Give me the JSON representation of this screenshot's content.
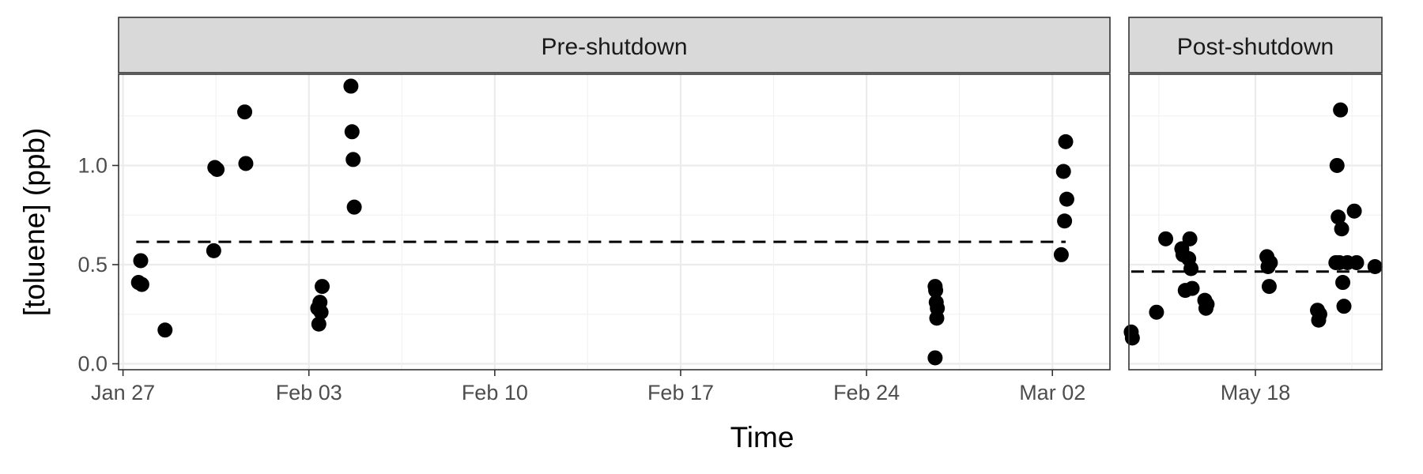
{
  "chart_data": {
    "type": "scatter",
    "xlabel": "Time",
    "ylabel": "[toluene] (ppb)",
    "y_ticks": [
      0.0,
      0.5,
      1.0
    ],
    "y_tick_labels": [
      "0.0",
      "0.5",
      "1.0"
    ],
    "ylim": [
      -0.03,
      1.46
    ],
    "grid": true,
    "facets": [
      {
        "label": "Pre-shutdown",
        "xlim": [
          "2020-01-26T20:00",
          "2020-03-04T04:00"
        ],
        "x_ticks": [
          "2020-01-27",
          "2020-02-03",
          "2020-02-10",
          "2020-02-17",
          "2020-02-24",
          "2020-03-02"
        ],
        "x_tick_labels": [
          "Jan 27",
          "Feb 03",
          "Feb 10",
          "Feb 17",
          "Feb 24",
          "Mar 02"
        ],
        "mean_line": {
          "y": 0.615,
          "x_start": "2020-01-27T12:00",
          "x_end": "2020-03-02T12:00"
        },
        "points": [
          {
            "x": "2020-01-27T14:00",
            "y": 0.41
          },
          {
            "x": "2020-01-27T16:00",
            "y": 0.52
          },
          {
            "x": "2020-01-27T17:00",
            "y": 0.4
          },
          {
            "x": "2020-01-28T14:00",
            "y": 0.17
          },
          {
            "x": "2020-01-30T10:00",
            "y": 0.57
          },
          {
            "x": "2020-01-30T11:00",
            "y": 0.99
          },
          {
            "x": "2020-01-30T13:00",
            "y": 0.98
          },
          {
            "x": "2020-01-31T14:00",
            "y": 1.27
          },
          {
            "x": "2020-01-31T15:00",
            "y": 1.01
          },
          {
            "x": "2020-02-03T08:00",
            "y": 0.28
          },
          {
            "x": "2020-02-03T09:00",
            "y": 0.2
          },
          {
            "x": "2020-02-03T10:00",
            "y": 0.31
          },
          {
            "x": "2020-02-03T11:00",
            "y": 0.26
          },
          {
            "x": "2020-02-03T12:00",
            "y": 0.39
          },
          {
            "x": "2020-02-04T14:00",
            "y": 1.4
          },
          {
            "x": "2020-02-04T15:00",
            "y": 1.17
          },
          {
            "x": "2020-02-04T16:00",
            "y": 1.03
          },
          {
            "x": "2020-02-04T17:00",
            "y": 0.79
          },
          {
            "x": "2020-02-26T14:00",
            "y": 0.39
          },
          {
            "x": "2020-02-26T14:30",
            "y": 0.37
          },
          {
            "x": "2020-02-26T15:00",
            "y": 0.31
          },
          {
            "x": "2020-02-26T16:00",
            "y": 0.28
          },
          {
            "x": "2020-02-26T15:30",
            "y": 0.23
          },
          {
            "x": "2020-02-26T14:00",
            "y": 0.03
          },
          {
            "x": "2020-03-02T08:00",
            "y": 0.55
          },
          {
            "x": "2020-03-02T10:00",
            "y": 0.97
          },
          {
            "x": "2020-03-02T12:00",
            "y": 1.12
          },
          {
            "x": "2020-03-02T13:00",
            "y": 0.83
          },
          {
            "x": "2020-03-02T11:00",
            "y": 0.72
          }
        ]
      },
      {
        "label": "Post-shutdown",
        "xlim": [
          "2020-05-13T10:00",
          "2020-05-22T14:00"
        ],
        "x_ticks": [
          "2020-05-18"
        ],
        "x_tick_labels": [
          "May 18"
        ],
        "mean_line": {
          "y": 0.465,
          "x_start": "2020-05-13T12:00",
          "x_end": "2020-05-22T12:00"
        },
        "points": [
          {
            "x": "2020-05-13T12:00",
            "y": 0.16
          },
          {
            "x": "2020-05-13T13:00",
            "y": 0.13
          },
          {
            "x": "2020-05-14T10:00",
            "y": 0.26
          },
          {
            "x": "2020-05-14T18:00",
            "y": 0.63
          },
          {
            "x": "2020-05-15T08:00",
            "y": 0.58
          },
          {
            "x": "2020-05-15T09:00",
            "y": 0.55
          },
          {
            "x": "2020-05-15T11:00",
            "y": 0.37
          },
          {
            "x": "2020-05-15T14:00",
            "y": 0.53
          },
          {
            "x": "2020-05-15T15:00",
            "y": 0.63
          },
          {
            "x": "2020-05-15T16:00",
            "y": 0.48
          },
          {
            "x": "2020-05-15T17:00",
            "y": 0.38
          },
          {
            "x": "2020-05-16T04:00",
            "y": 0.32
          },
          {
            "x": "2020-05-16T05:00",
            "y": 0.28
          },
          {
            "x": "2020-05-16T06:00",
            "y": 0.3
          },
          {
            "x": "2020-05-18T10:00",
            "y": 0.54
          },
          {
            "x": "2020-05-18T11:00",
            "y": 0.49
          },
          {
            "x": "2020-05-18T12:00",
            "y": 0.39
          },
          {
            "x": "2020-05-18T13:00",
            "y": 0.51
          },
          {
            "x": "2020-05-20T06:00",
            "y": 0.27
          },
          {
            "x": "2020-05-20T07:00",
            "y": 0.22
          },
          {
            "x": "2020-05-20T08:00",
            "y": 0.25
          },
          {
            "x": "2020-05-20T22:00",
            "y": 0.51
          },
          {
            "x": "2020-05-20T23:00",
            "y": 1.0
          },
          {
            "x": "2020-05-21T00:00",
            "y": 0.74
          },
          {
            "x": "2020-05-21T01:00",
            "y": 0.51
          },
          {
            "x": "2020-05-21T02:00",
            "y": 1.28
          },
          {
            "x": "2020-05-21T03:00",
            "y": 0.68
          },
          {
            "x": "2020-05-21T04:00",
            "y": 0.41
          },
          {
            "x": "2020-05-21T05:00",
            "y": 0.29
          },
          {
            "x": "2020-05-21T08:00",
            "y": 0.51
          },
          {
            "x": "2020-05-21T14:00",
            "y": 0.77
          },
          {
            "x": "2020-05-21T16:00",
            "y": 0.51
          },
          {
            "x": "2020-05-22T08:00",
            "y": 0.49
          }
        ]
      }
    ]
  }
}
